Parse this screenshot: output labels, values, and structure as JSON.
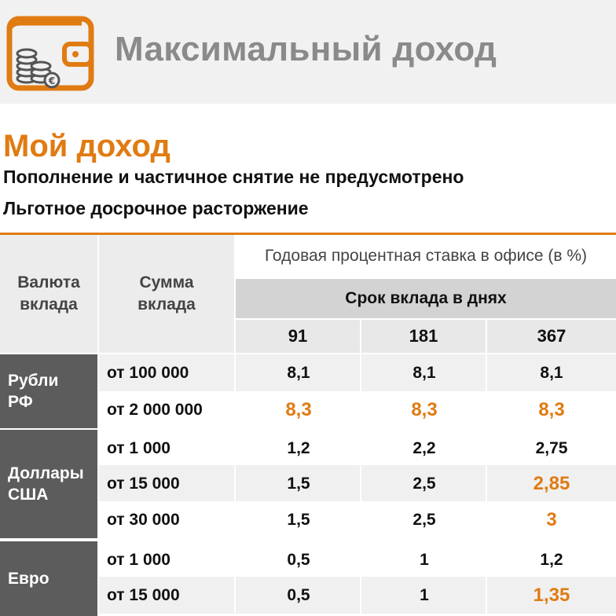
{
  "header": {
    "title": "Максимальный доход",
    "icon": "wallet-coins-icon",
    "accent_color": "#e07b12"
  },
  "section": {
    "title": "Мой доход",
    "line1": "Пополнение и частичное снятие не предусмотрено",
    "line2": "Льготное досрочное расторжение"
  },
  "table": {
    "col_currency": "Валюта вклада",
    "col_amount": "Сумма вклада",
    "col_rate": "Годовая процентная ставка в офисе (в %)",
    "col_term": "Срок вклада в днях",
    "terms": [
      "91",
      "181",
      "367"
    ],
    "groups": [
      {
        "currency": "Рубли РФ",
        "rows": [
          {
            "amount": "от 100 000",
            "rates": [
              "8,1",
              "8,1",
              "8,1"
            ]
          },
          {
            "amount": "от 2 000 000",
            "rates": [
              "8,3",
              "8,3",
              "8,3"
            ]
          }
        ]
      },
      {
        "currency": "Доллары США",
        "rows": [
          {
            "amount": "от 1 000",
            "rates": [
              "1,2",
              "2,2",
              "2,75"
            ]
          },
          {
            "amount": "от 15 000",
            "rates": [
              "1,5",
              "2,5",
              "2,85"
            ]
          },
          {
            "amount": "от 30 000",
            "rates": [
              "1,5",
              "2,5",
              "3"
            ]
          }
        ]
      },
      {
        "currency": "Евро",
        "rows": [
          {
            "amount": "от 1 000",
            "rates": [
              "0,5",
              "1",
              "1,2"
            ]
          },
          {
            "amount": "от 15 000",
            "rates": [
              "0,5",
              "1",
              "1,35"
            ]
          }
        ]
      }
    ]
  }
}
